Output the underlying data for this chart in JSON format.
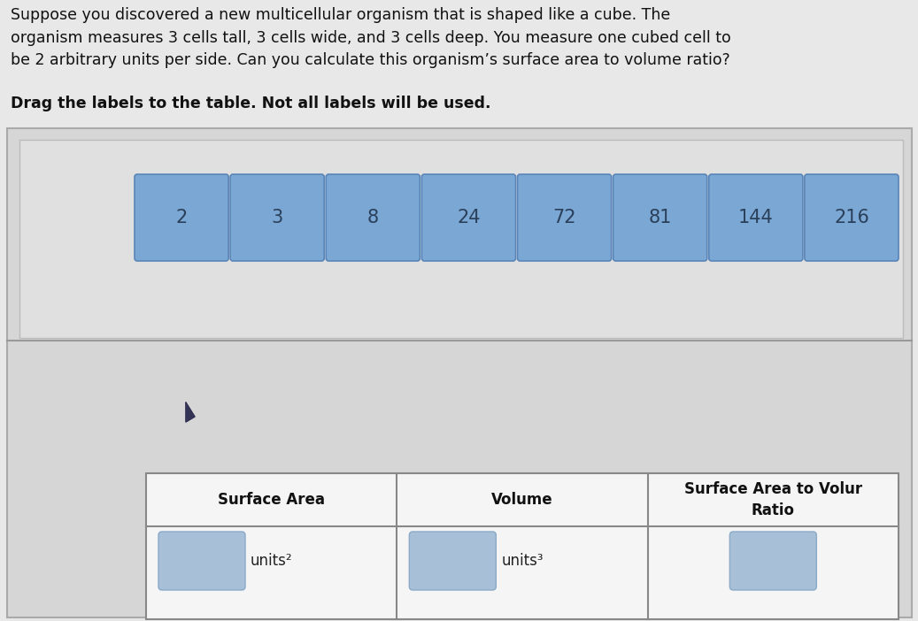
{
  "title_text": "Suppose you discovered a new multicellular organism that is shaped like a cube. The\norganism measures 3 cells tall, 3 cells wide, and 3 cells deep. You measure one cubed cell to\nbe 2 arbitrary units per side. Can you calculate this organism’s surface area to volume ratio?",
  "subtitle_text": "Drag the labels to the table. Not all labels will be used.",
  "labels": [
    "2",
    "3",
    "8",
    "24",
    "72",
    "81",
    "144",
    "216"
  ],
  "label_bg_color": "#7ba7d4",
  "label_text_color": "#2a3f5a",
  "label_edge_color": "#5a85b8",
  "outer_bg_color": "#d6d6d6",
  "inner_panel_color": "#dcdcdc",
  "table_bg_color": "#f5f5f5",
  "drop_box_color": "#a8bfd8",
  "drop_box_edge": "#8aaac8",
  "title_fontsize": 12.5,
  "subtitle_fontsize": 12.5,
  "label_fontsize": 15,
  "table_fontsize": 12,
  "fig_bg_color": "#e8e8e8",
  "title_color": "#111111",
  "subtitle_color": "#111111",
  "table_header": [
    "Surface Area",
    "Volume",
    "Surface Area to Volur\nRatio"
  ],
  "table_data_labels": [
    "units²",
    "units³",
    ""
  ],
  "cursor_color": "#333355"
}
